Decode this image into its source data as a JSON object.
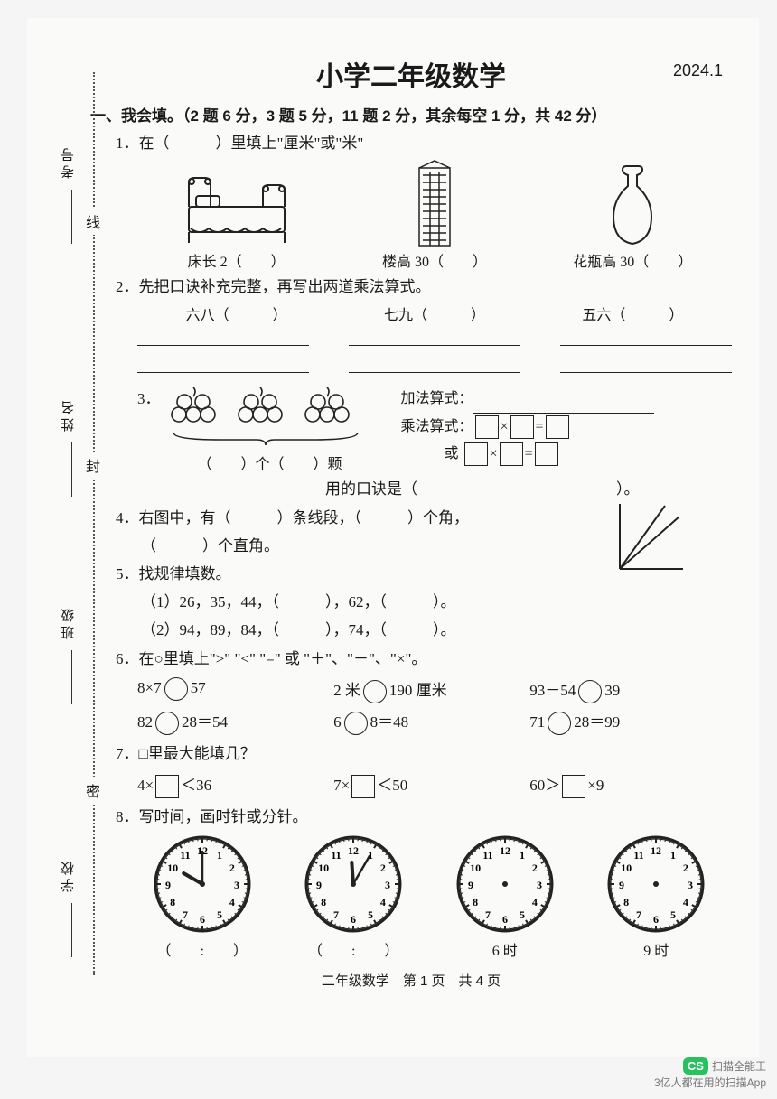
{
  "header": {
    "title": "小学二年级数学",
    "date": "2024.1"
  },
  "binding": {
    "labels": [
      "考号",
      "姓名",
      "班级",
      "学校"
    ],
    "chars": [
      "线",
      "封",
      "密"
    ]
  },
  "section1": {
    "heading": "一、我会填。（2 题 6 分，3 题 5 分，11 题 2 分，其余每空 1 分，共 42 分）",
    "q1": {
      "prompt": "1．在（　　　）里填上\"厘米\"或\"米\"",
      "items": [
        {
          "label_prefix": "床长 2（",
          "label_suffix": "　　）"
        },
        {
          "label_prefix": "楼高 30（",
          "label_suffix": "　　）"
        },
        {
          "label_prefix": "花瓶高 30（",
          "label_suffix": "　　）"
        }
      ]
    },
    "q2": {
      "prompt": "2．先把口诀补充完整，再写出两道乘法算式。",
      "items": [
        "六八（　　　）",
        "七九（　　　）",
        "五六（　　　）"
      ]
    },
    "q3": {
      "num": "3．",
      "count_label": "（　　）个（　　）颗",
      "add_label": "加法算式：",
      "mul_label": "乘法算式：",
      "or_label": "或",
      "rule_label": "用的口诀是（",
      "rule_suffix": "）。"
    },
    "q4": {
      "text": "4．右图中，有（　　　）条线段，（　　　）个角，",
      "text2": "（　　　）个直角。"
    },
    "q5": {
      "prompt": "5．找规律填数。",
      "line1": "（1）26，35，44，（　　　），62，（　　　）。",
      "line2": "（2）94，89，84，（　　　），74，（　　　）。"
    },
    "q6": {
      "prompt": "6．在○里填上\">\" \"<\" \"=\" 或 \"＋\"、\"－\"、\"×\"。",
      "cells": [
        "8×7○57",
        "2 米○190 厘米",
        "93－54○39",
        "82○28＝54",
        "6○8＝48",
        "71○28＝99"
      ]
    },
    "q7": {
      "prompt": "7．□里最大能填几？",
      "cells": [
        "4×□＜36",
        "7×□＜50",
        "60＞□×9"
      ]
    },
    "q8": {
      "prompt": "8．写时间，画时针或分针。",
      "labels": [
        "（　　:　　）",
        "（　　:　　）",
        "6 时",
        "9 时"
      ],
      "clocks": [
        {
          "hour_angle": -60,
          "minute_angle": 0,
          "show_minute": true,
          "show_hour": true
        },
        {
          "hour_angle": -4,
          "minute_angle": 30,
          "show_minute": true,
          "show_hour": true
        },
        {
          "hour_angle": 0,
          "minute_angle": 0,
          "show_minute": false,
          "show_hour": false
        },
        {
          "hour_angle": 0,
          "minute_angle": 0,
          "show_minute": false,
          "show_hour": false
        }
      ]
    }
  },
  "footer": "二年级数学　第 1 页　共 4 页",
  "watermark": {
    "brand": "CS",
    "text1": "扫描全能王",
    "text2": "3亿人都在用的扫描App"
  },
  "colors": {
    "ink": "#1a1a1a",
    "paper": "#fafaf8",
    "green": "#27c160"
  }
}
